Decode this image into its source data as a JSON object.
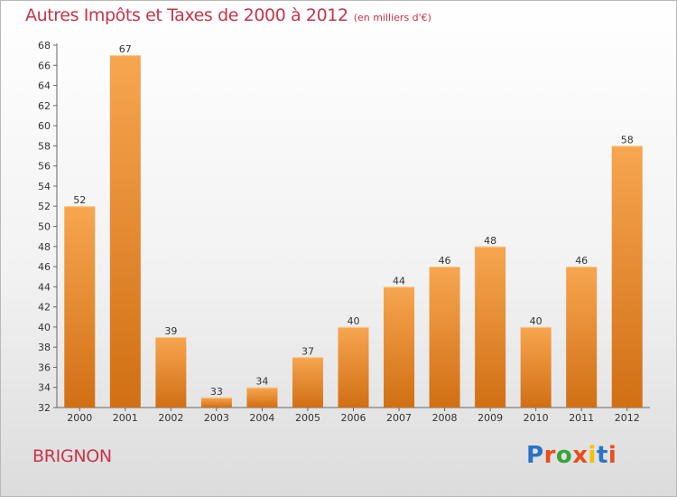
{
  "chart_data": {
    "type": "bar",
    "title": "Autres Impôts et Taxes de 2000 à 2012",
    "subtitle": "(en milliers d'€)",
    "categories": [
      "2000",
      "2001",
      "2002",
      "2003",
      "2004",
      "2005",
      "2006",
      "2007",
      "2008",
      "2009",
      "2010",
      "2011",
      "2012"
    ],
    "values": [
      52,
      67,
      39,
      33,
      34,
      37,
      40,
      44,
      46,
      48,
      40,
      46,
      58
    ],
    "ylim": [
      32,
      68
    ],
    "yticks": [
      32,
      34,
      36,
      38,
      40,
      42,
      44,
      46,
      48,
      50,
      52,
      54,
      56,
      58,
      60,
      62,
      64,
      66,
      68
    ],
    "grid": false,
    "bar_color": "#f0902a"
  },
  "footer": {
    "place": "BRIGNON",
    "logo": "Proxiti",
    "logo_colors": [
      "#2a73c6",
      "#e94e1b",
      "#36a43a",
      "#e94e1b",
      "#f4c000",
      "#2a73c6",
      "#e94e1b"
    ]
  }
}
